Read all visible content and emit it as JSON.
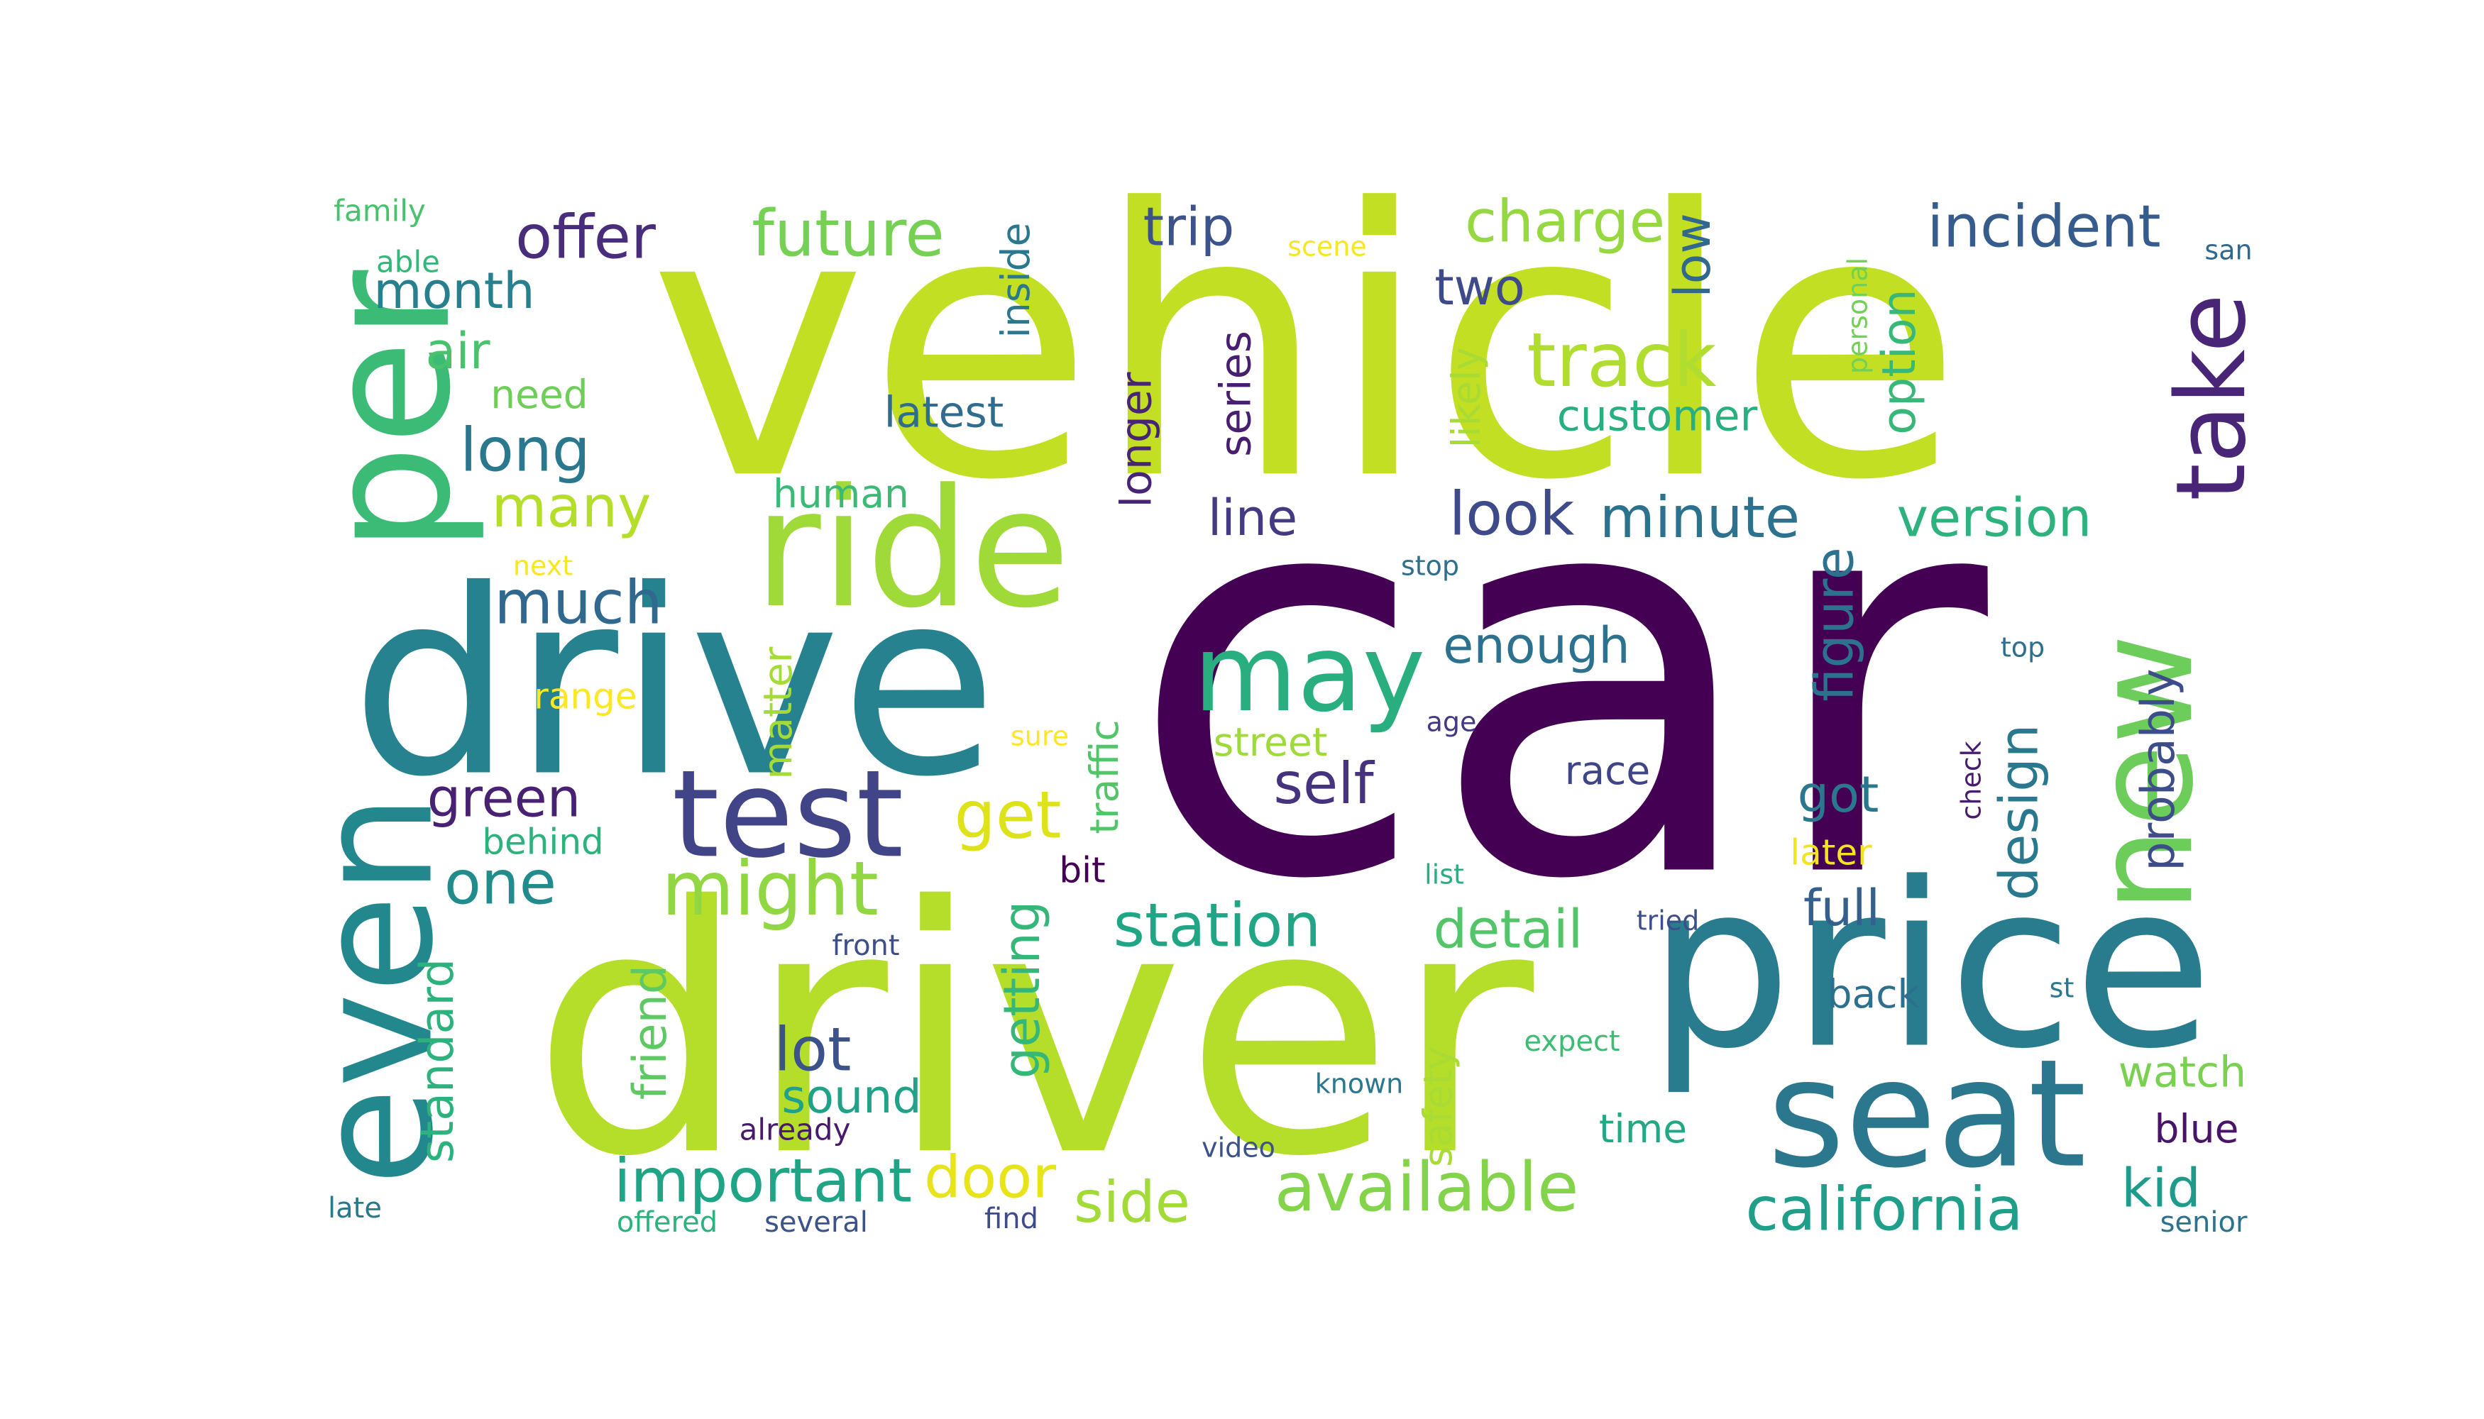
{
  "words": [
    {
      "text": "car",
      "color": "#440154"
    },
    {
      "text": "vehicle",
      "color": "#c2df23"
    },
    {
      "text": "driver",
      "color": "#b5de2b"
    },
    {
      "text": "drive",
      "color": "#26828e"
    },
    {
      "text": "price",
      "color": "#287c8e"
    },
    {
      "text": "ride",
      "color": "#a0da39"
    },
    {
      "text": "per",
      "color": "#3bbb75"
    },
    {
      "text": "even",
      "color": "#23888e"
    },
    {
      "text": "test",
      "color": "#414487"
    },
    {
      "text": "seat",
      "color": "#2a778e"
    },
    {
      "text": "new",
      "color": "#6ccd5a"
    },
    {
      "text": "take",
      "color": "#482576"
    },
    {
      "text": "may",
      "color": "#29af7f"
    },
    {
      "text": "might",
      "color": "#90d743"
    },
    {
      "text": "track",
      "color": "#b0dd2f"
    },
    {
      "text": "available",
      "color": "#84d44b"
    },
    {
      "text": "station",
      "color": "#21a685"
    },
    {
      "text": "california",
      "color": "#1f9e89"
    },
    {
      "text": "important",
      "color": "#20a486"
    },
    {
      "text": "look",
      "color": "#3e4a89"
    },
    {
      "text": "offer",
      "color": "#472d7b"
    },
    {
      "text": "future",
      "color": "#75d054"
    },
    {
      "text": "charge",
      "color": "#95d840"
    },
    {
      "text": "incident",
      "color": "#365c8d"
    },
    {
      "text": "get",
      "color": "#dde318"
    },
    {
      "text": "self",
      "color": "#46337e"
    },
    {
      "text": "door",
      "color": "#e7e419"
    },
    {
      "text": "side",
      "color": "#a2da37"
    },
    {
      "text": "minute",
      "color": "#2c728e"
    },
    {
      "text": "version",
      "color": "#2db27d"
    },
    {
      "text": "much",
      "color": "#31688e"
    },
    {
      "text": "long",
      "color": "#2a788e"
    },
    {
      "text": "one",
      "color": "#228c8d"
    },
    {
      "text": "green",
      "color": "#482173"
    },
    {
      "text": "many",
      "color": "#b5de2b"
    },
    {
      "text": "lot",
      "color": "#3b528b"
    },
    {
      "text": "detail",
      "color": "#52c569"
    },
    {
      "text": "figure",
      "color": "#2c728e"
    },
    {
      "text": "design",
      "color": "#2a788e"
    },
    {
      "text": "probably",
      "color": "#3d4d8a"
    },
    {
      "text": "kid",
      "color": "#1e9b8a"
    },
    {
      "text": "got",
      "color": "#2a788e"
    },
    {
      "text": "full",
      "color": "#355f8d"
    },
    {
      "text": "month",
      "color": "#27808e"
    },
    {
      "text": "air",
      "color": "#4ac16d"
    },
    {
      "text": "trip",
      "color": "#3b528b"
    },
    {
      "text": "two",
      "color": "#3e4a89"
    },
    {
      "text": "low",
      "color": "#31688e"
    },
    {
      "text": "line",
      "color": "#443983"
    },
    {
      "text": "enough",
      "color": "#2c728e"
    },
    {
      "text": "getting",
      "color": "#35b779"
    },
    {
      "text": "standard",
      "color": "#2db27d"
    },
    {
      "text": "friend",
      "color": "#5ec962"
    },
    {
      "text": "sound",
      "color": "#1fa287"
    },
    {
      "text": "series",
      "color": "#481f70"
    },
    {
      "text": "longer",
      "color": "#482475"
    },
    {
      "text": "option",
      "color": "#37b878"
    },
    {
      "text": "customer",
      "color": "#29af7f"
    },
    {
      "text": "latest",
      "color": "#2f6c8e"
    },
    {
      "text": "watch",
      "color": "#7ad151"
    },
    {
      "text": "blue",
      "color": "#481467"
    },
    {
      "text": "back",
      "color": "#2d708e"
    },
    {
      "text": "race",
      "color": "#404588"
    },
    {
      "text": "street",
      "color": "#9fda3a"
    },
    {
      "text": "time",
      "color": "#22a884"
    },
    {
      "text": "safety",
      "color": "#a8db34"
    },
    {
      "text": "inside",
      "color": "#2a788e"
    },
    {
      "text": "matter",
      "color": "#a5db36"
    },
    {
      "text": "human",
      "color": "#3aba76"
    },
    {
      "text": "likely",
      "color": "#a8db34"
    },
    {
      "text": "traffic",
      "color": "#52c569"
    },
    {
      "text": "need",
      "color": "#6ece58"
    },
    {
      "text": "range",
      "color": "#fde725"
    },
    {
      "text": "behind",
      "color": "#2db27d"
    },
    {
      "text": "later",
      "color": "#f1e51d"
    },
    {
      "text": "bit",
      "color": "#440154"
    },
    {
      "text": "family",
      "color": "#4ac16d"
    },
    {
      "text": "able",
      "color": "#35b779"
    },
    {
      "text": "scene",
      "color": "#f8e621"
    },
    {
      "text": "san",
      "color": "#31688e"
    },
    {
      "text": "personal",
      "color": "#73d056"
    },
    {
      "text": "next",
      "color": "#f8e621"
    },
    {
      "text": "stop",
      "color": "#2e6e8e"
    },
    {
      "text": "top",
      "color": "#2e6e8e"
    },
    {
      "text": "age",
      "color": "#443983"
    },
    {
      "text": "sure",
      "color": "#fde725"
    },
    {
      "text": "check",
      "color": "#481c6e"
    },
    {
      "text": "list",
      "color": "#29af7f"
    },
    {
      "text": "tried",
      "color": "#3d4e8a"
    },
    {
      "text": "front",
      "color": "#3d4e8a"
    },
    {
      "text": "expect",
      "color": "#3fbc73"
    },
    {
      "text": "st",
      "color": "#2a788e"
    },
    {
      "text": "known",
      "color": "#2a788e"
    },
    {
      "text": "already",
      "color": "#481a6c"
    },
    {
      "text": "video",
      "color": "#3b528b"
    },
    {
      "text": "late",
      "color": "#2a788e"
    },
    {
      "text": "offered",
      "color": "#2db27d"
    },
    {
      "text": "several",
      "color": "#3b528b"
    },
    {
      "text": "find",
      "color": "#3e4a89"
    },
    {
      "text": "senior",
      "color": "#2c728e"
    }
  ]
}
